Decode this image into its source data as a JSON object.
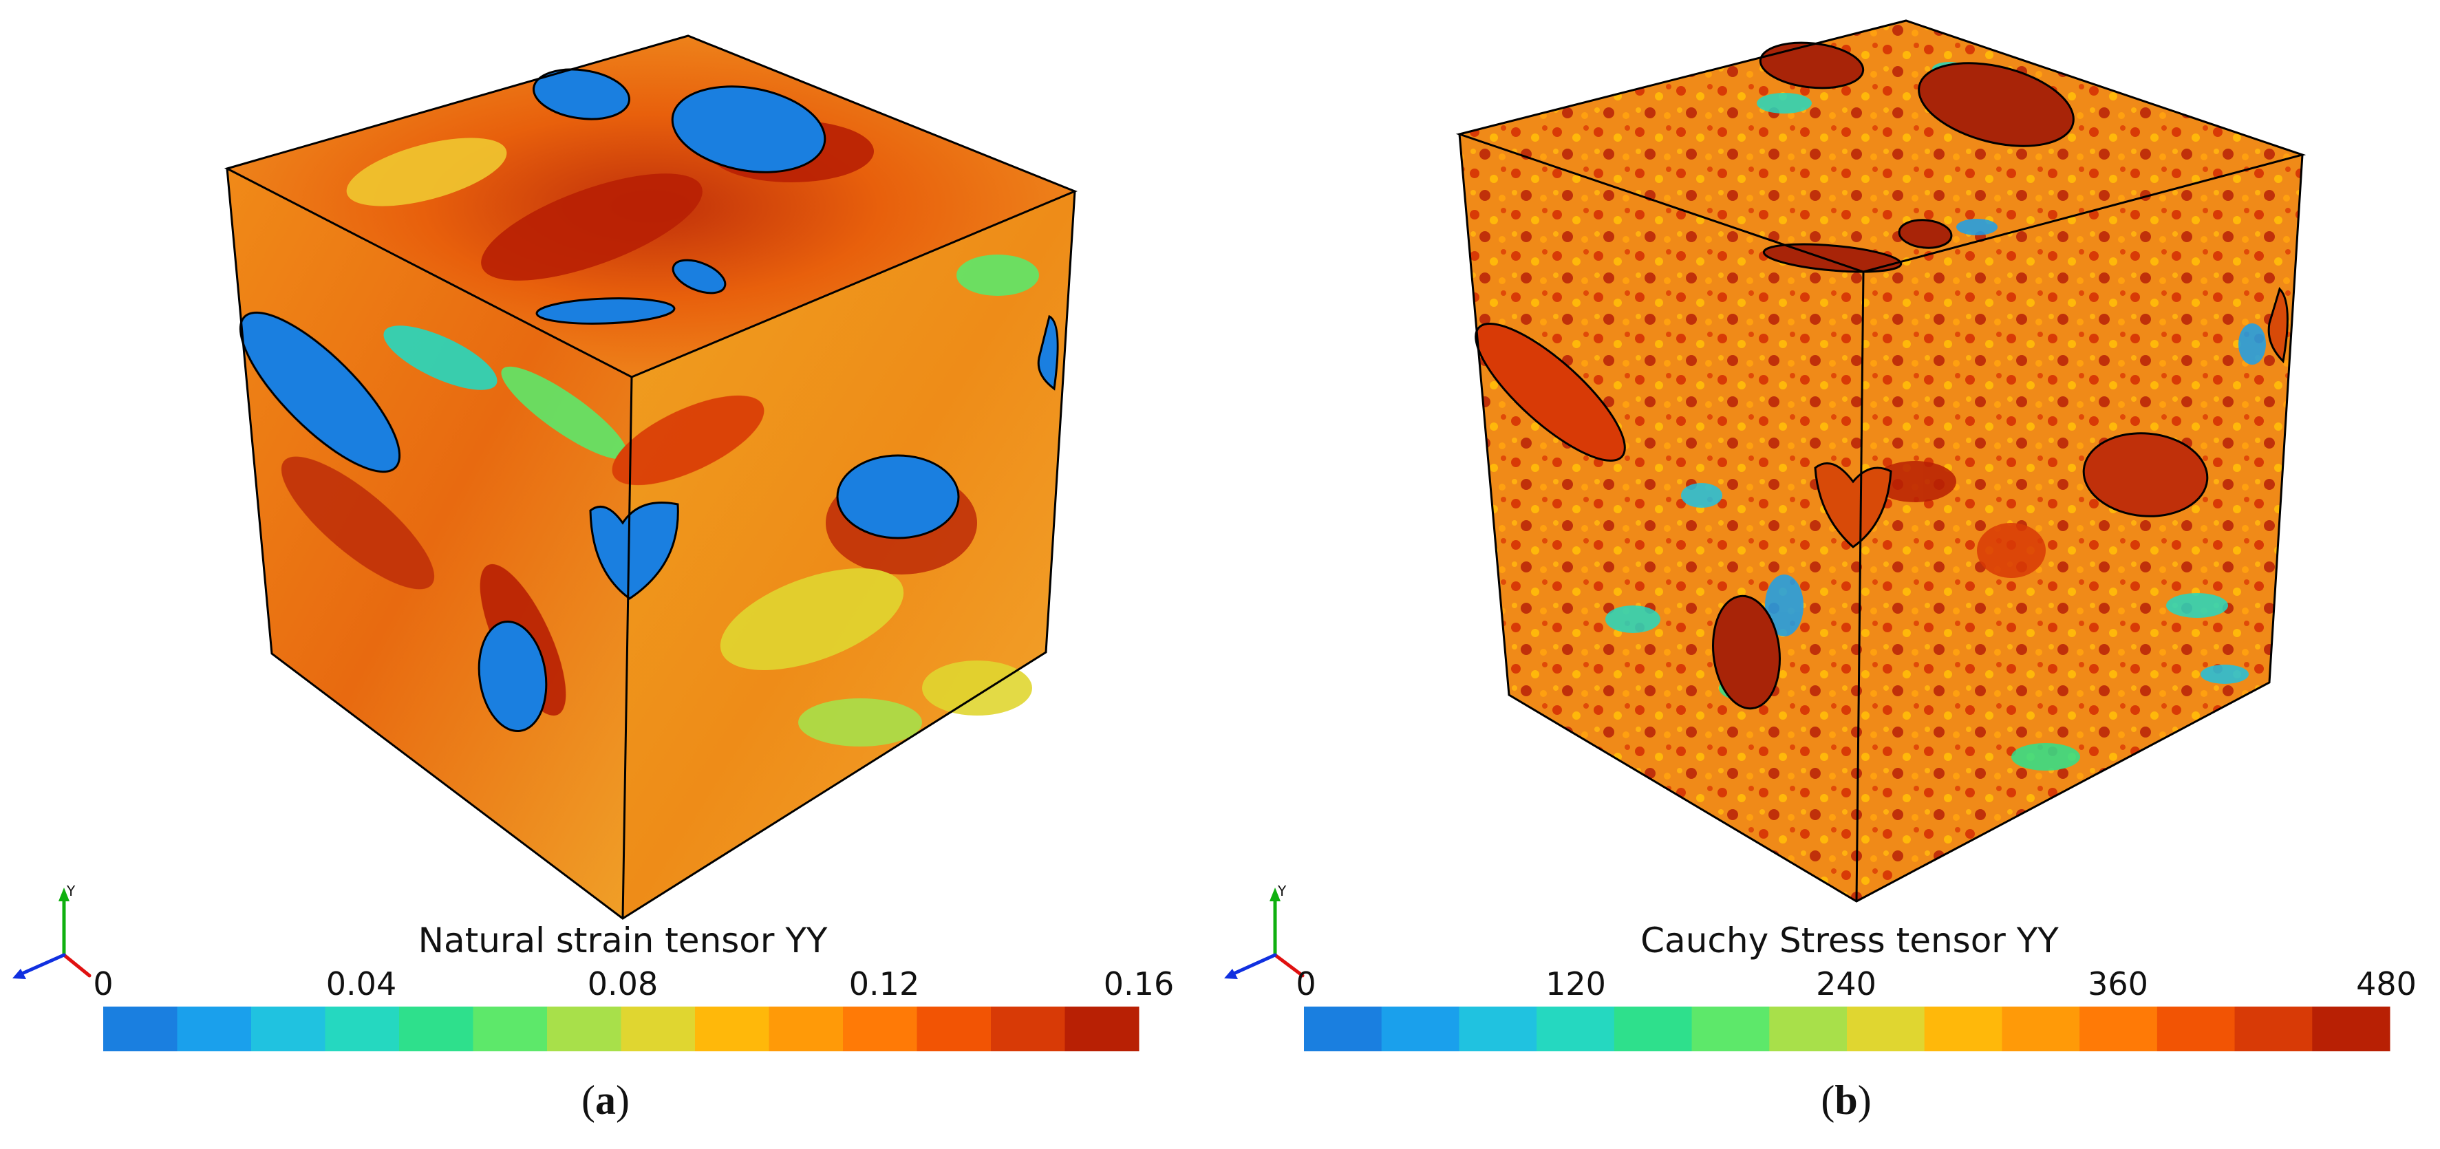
{
  "panels": [
    {
      "id": "a",
      "colorbar_title": "Natural strain tensor YY",
      "ticks": [
        "0",
        "0.04",
        "0.08",
        "0.12",
        "0.16"
      ],
      "caption_letter": "a",
      "axis_label": "Y"
    },
    {
      "id": "b",
      "colorbar_title": "Cauchy Stress tensor YY",
      "ticks": [
        "0",
        "120",
        "240",
        "360",
        "480"
      ],
      "caption_letter": "b",
      "axis_label": "Y"
    }
  ],
  "colormap": [
    "#1a7fe0",
    "#1aa0ec",
    "#20c2e0",
    "#25d8c0",
    "#2ee08c",
    "#5de86a",
    "#a8e04a",
    "#e0d630",
    "#ffb80a",
    "#ff9a08",
    "#ff7a06",
    "#f25404",
    "#d83a06",
    "#b82004"
  ],
  "colors": {
    "inclusion_a": "#1a7fe0",
    "inclusion_b": "#a82408",
    "axis_x": "#e01010",
    "axis_y": "#10b010",
    "axis_z": "#1030e0"
  }
}
